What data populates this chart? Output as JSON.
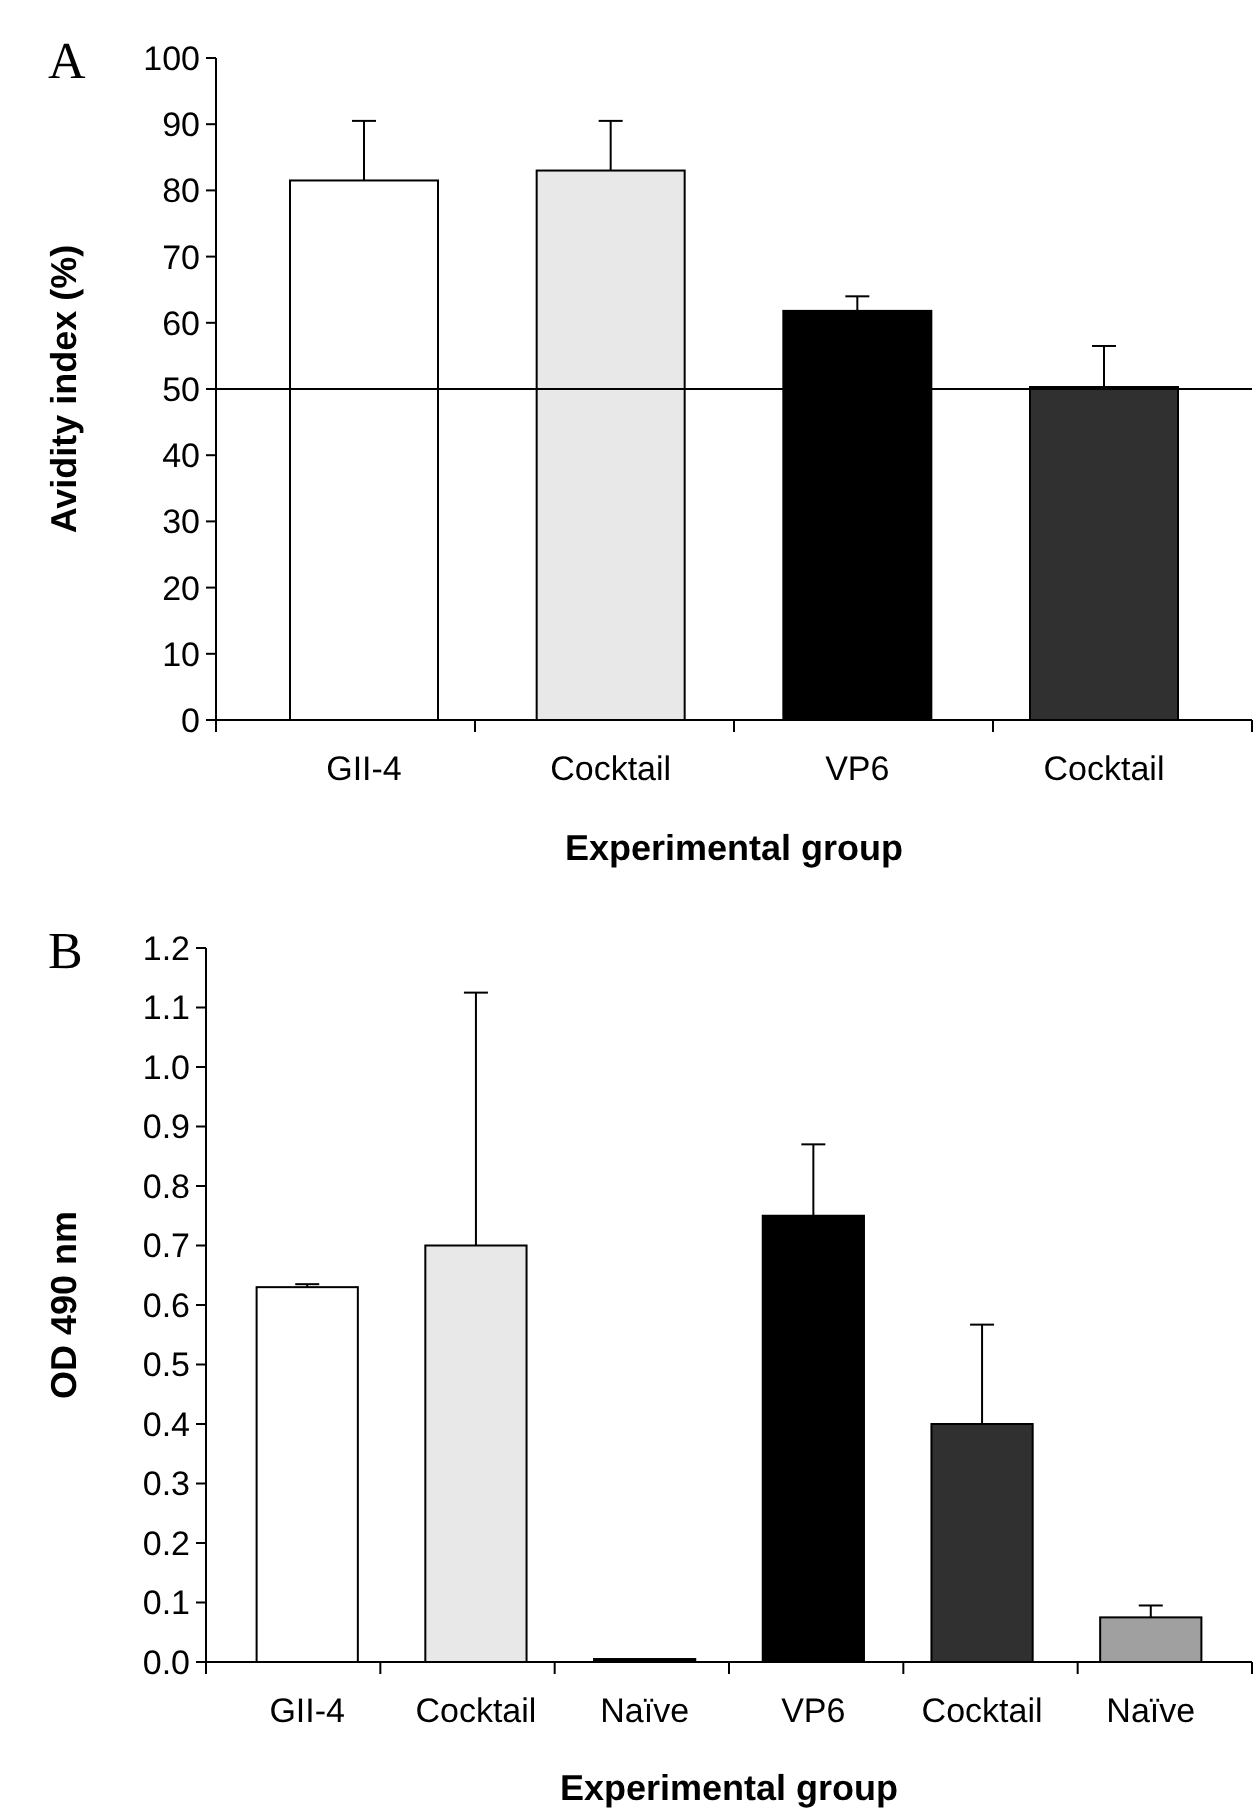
{
  "chart_data": [
    {
      "type": "bar",
      "title": "A",
      "xlabel": "Experimental group",
      "ylabel": "Avidity index (%)",
      "categories": [
        "GII-4",
        "Cocktail",
        "VP6",
        "Cocktail"
      ],
      "values": [
        81.5,
        83,
        61.8,
        50.3
      ],
      "colors": [
        "#ffffff",
        "#e8e8e8",
        "#000000",
        "#303030"
      ],
      "errors": [
        [
          81.5,
          90.5
        ],
        [
          83,
          90.5
        ],
        [
          61.8,
          64
        ],
        [
          50.3,
          56.5
        ]
      ],
      "ylim": [
        0,
        100
      ],
      "yticks": [
        0,
        10,
        20,
        30,
        40,
        50,
        60,
        70,
        80,
        90,
        100
      ],
      "ref_lines": [
        {
          "axis": "y",
          "value": 50,
          "color": "#000000"
        }
      ],
      "grid": false
    },
    {
      "type": "bar",
      "title": "B",
      "xlabel": "Experimental group",
      "ylabel": "OD 490 nm",
      "categories": [
        "GII-4",
        "Cocktail",
        "Naïve",
        "VP6",
        "Cocktail",
        "Naïve"
      ],
      "values": [
        0.63,
        0.7,
        0.005,
        0.75,
        0.4,
        0.075
      ],
      "colors": [
        "#ffffff",
        "#e8e8e8",
        "#000000",
        "#000000",
        "#303030",
        "#a0a0a0"
      ],
      "errors": [
        [
          0.63,
          0.635
        ],
        [
          0.7,
          1.125
        ],
        null,
        [
          0.75,
          0.87
        ],
        [
          0.4,
          0.567
        ],
        [
          0.075,
          0.095
        ]
      ],
      "ylim": [
        0,
        1.2
      ],
      "yticks": [
        {
          "value": 0,
          "label": "0.0"
        },
        {
          "value": 0.1,
          "label": "0.1"
        },
        {
          "value": 0.2,
          "label": "0.2"
        },
        {
          "value": 0.3,
          "label": "0.3"
        },
        {
          "value": 0.4,
          "label": "0.4"
        },
        {
          "value": 0.5,
          "label": "0.5"
        },
        {
          "value": 0.6,
          "label": "0.6"
        },
        {
          "value": 0.7,
          "label": "0.7"
        },
        {
          "value": 0.8,
          "label": "0.8"
        },
        {
          "value": 0.9,
          "label": "0.9"
        },
        {
          "value": 1,
          "label": "1.0"
        },
        {
          "value": 1.1,
          "label": "1.1"
        },
        {
          "value": 1.2,
          "label": "1.2"
        }
      ],
      "grid": false
    }
  ]
}
